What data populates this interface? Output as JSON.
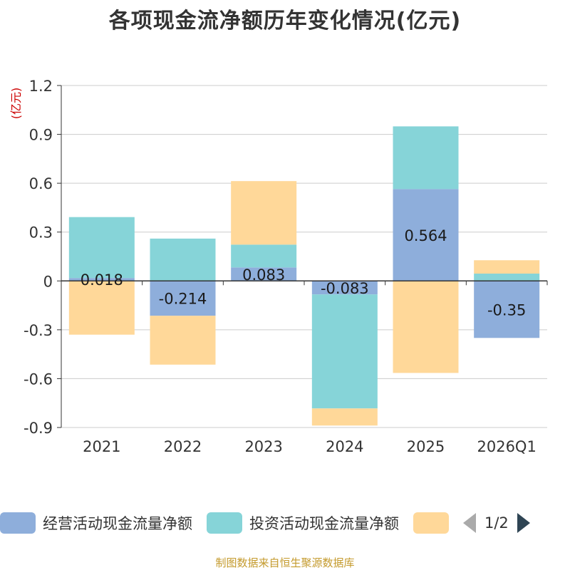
{
  "chart_data": {
    "type": "bar",
    "stacked": true,
    "title": "各项现金流净额历年变化情况(亿元)",
    "ylabel": "(亿元)",
    "ylim": [
      -0.9,
      1.2
    ],
    "yticks": [
      "1.2",
      "0.9",
      "0.6",
      "0.3",
      "0",
      "-0.3",
      "-0.6",
      "-0.9"
    ],
    "categories": [
      "2021",
      "2022",
      "2023",
      "2024",
      "2025",
      "2026Q1"
    ],
    "series": [
      {
        "name": "经营活动现金流量净额",
        "color": "#8eaedb",
        "values": [
          0.018,
          -0.214,
          0.083,
          -0.083,
          0.564,
          -0.35
        ],
        "labels": [
          "0.018",
          "-0.214",
          "0.083",
          "-0.083",
          "0.564",
          "-0.35"
        ]
      },
      {
        "name": "投资活动现金流量净额",
        "color": "#86d4d8",
        "values": [
          0.374,
          0.26,
          0.14,
          -0.7,
          0.385,
          0.045
        ]
      },
      {
        "name": "",
        "color": "#ffd899",
        "values": [
          -0.33,
          -0.3,
          0.39,
          -0.105,
          -0.565,
          0.082
        ]
      }
    ],
    "legend_position": "bottom"
  },
  "legend": {
    "page_text": "1/2"
  },
  "source": "制图数据来自恒生聚源数据库"
}
